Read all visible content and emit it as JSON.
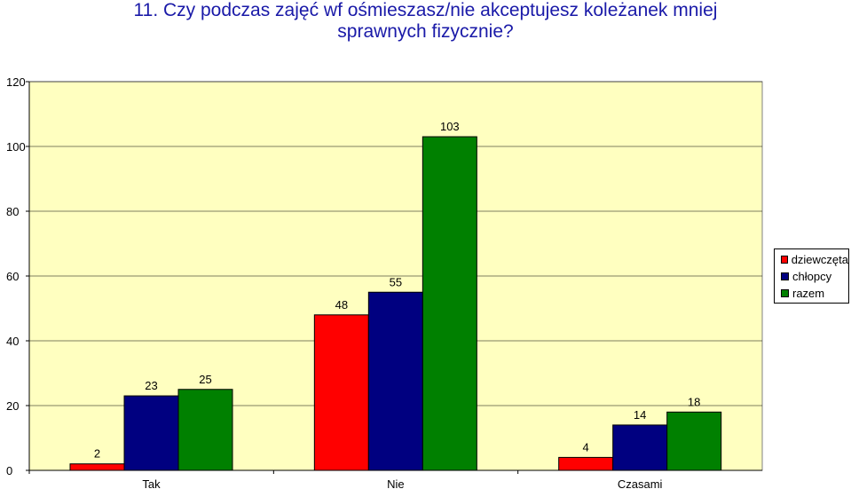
{
  "chart_data": {
    "type": "bar",
    "title_lines": [
      "11. Czy podczas zajęć wf ośmieszasz/nie akceptujesz koleżanek mniej",
      "sprawnych fizycznie?"
    ],
    "categories": [
      "Tak",
      "Nie",
      "Czasami"
    ],
    "series": [
      {
        "name": "dziewczęta",
        "color": "#ff0000",
        "values": [
          2,
          48,
          4
        ]
      },
      {
        "name": "chłopcy",
        "color": "#000080",
        "values": [
          23,
          55,
          14
        ]
      },
      {
        "name": "razem",
        "color": "#008000",
        "values": [
          25,
          103,
          18
        ]
      }
    ],
    "ylim": [
      0,
      120
    ],
    "yticks": [
      0,
      20,
      40,
      60,
      80,
      100,
      120
    ],
    "xlabel": "",
    "ylabel": "",
    "plot_background": "#ffffc0",
    "grid": true,
    "legend_position": "right"
  }
}
